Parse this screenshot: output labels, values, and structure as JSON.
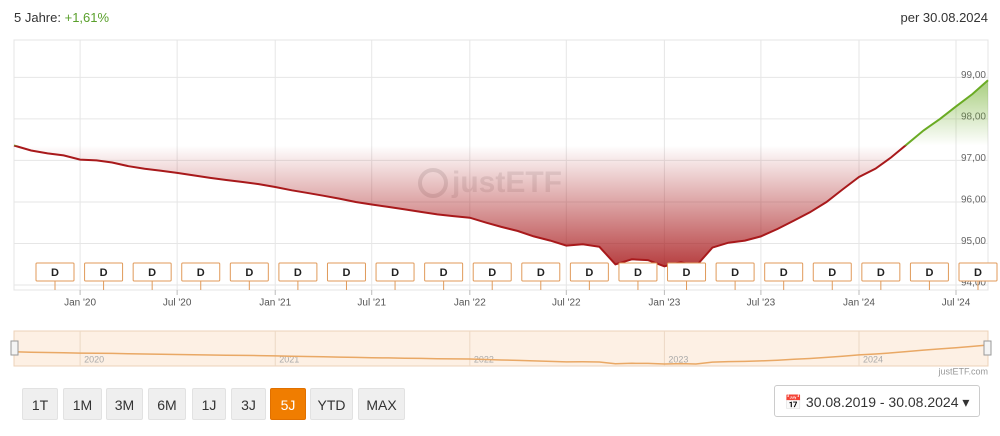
{
  "header": {
    "period_label": "5 Jahre:",
    "performance": "+1,61%",
    "as_of": "per 30.08.2024"
  },
  "chart_data": {
    "type": "area-line",
    "watermark": "justETF",
    "source": "justETF.com",
    "x": [
      "2019-08-30",
      "2019-10-01",
      "2019-11-01",
      "2019-12-01",
      "2020-01-01",
      "2020-02-01",
      "2020-03-01",
      "2020-04-01",
      "2020-05-01",
      "2020-06-01",
      "2020-07-01",
      "2020-08-01",
      "2020-09-01",
      "2020-10-01",
      "2020-11-01",
      "2020-12-01",
      "2021-01-01",
      "2021-02-01",
      "2021-03-01",
      "2021-04-01",
      "2021-05-01",
      "2021-06-01",
      "2021-07-01",
      "2021-08-01",
      "2021-09-01",
      "2021-10-01",
      "2021-11-01",
      "2021-12-01",
      "2022-01-01",
      "2022-02-01",
      "2022-03-01",
      "2022-04-01",
      "2022-05-01",
      "2022-06-01",
      "2022-07-01",
      "2022-08-01",
      "2022-09-01",
      "2022-10-01",
      "2022-11-01",
      "2022-12-01",
      "2023-01-01",
      "2023-02-01",
      "2023-03-01",
      "2023-04-01",
      "2023-05-01",
      "2023-06-01",
      "2023-07-01",
      "2023-08-01",
      "2023-09-01",
      "2023-10-01",
      "2023-11-01",
      "2023-12-01",
      "2024-01-01",
      "2024-02-01",
      "2024-03-01",
      "2024-04-01",
      "2024-05-01",
      "2024-06-01",
      "2024-07-01",
      "2024-08-01",
      "2024-08-30"
    ],
    "values": [
      97.36,
      97.24,
      97.17,
      97.12,
      97.02,
      97.0,
      96.95,
      96.86,
      96.8,
      96.75,
      96.7,
      96.64,
      96.58,
      96.53,
      96.48,
      96.43,
      96.36,
      96.28,
      96.22,
      96.15,
      96.08,
      96.0,
      95.94,
      95.88,
      95.82,
      95.76,
      95.7,
      95.66,
      95.62,
      95.5,
      95.4,
      95.3,
      95.17,
      95.07,
      94.95,
      94.98,
      94.92,
      94.5,
      94.62,
      94.6,
      94.45,
      94.55,
      94.45,
      94.9,
      95.02,
      95.07,
      95.17,
      95.35,
      95.55,
      95.75,
      96.0,
      96.3,
      96.6,
      96.8,
      97.07,
      97.4,
      97.72,
      98.0,
      98.3,
      98.6,
      98.93
    ],
    "color_below": "#a8191b",
    "color_above": "#6aab24",
    "xlim": [
      "2019-08-30",
      "2024-08-30"
    ],
    "xticks": [
      {
        "value": "2020-01-01",
        "label": "Jan '20"
      },
      {
        "value": "2020-07-01",
        "label": "Jul '20"
      },
      {
        "value": "2021-01-01",
        "label": "Jan '21"
      },
      {
        "value": "2021-07-01",
        "label": "Jul '21"
      },
      {
        "value": "2022-01-01",
        "label": "Jan '22"
      },
      {
        "value": "2022-07-01",
        "label": "Jul '22"
      },
      {
        "value": "2023-01-01",
        "label": "Jan '23"
      },
      {
        "value": "2023-07-01",
        "label": "Jul '23"
      },
      {
        "value": "2024-01-01",
        "label": "Jan '24"
      },
      {
        "value": "2024-07-01",
        "label": "Jul '24"
      }
    ],
    "ylim": [
      93.88,
      99.9
    ],
    "yticks": [
      {
        "value": 94,
        "label": "94,00"
      },
      {
        "value": 95,
        "label": "95,00"
      },
      {
        "value": 96,
        "label": "96,00"
      },
      {
        "value": 97,
        "label": "97,00"
      },
      {
        "value": 98,
        "label": "98,00"
      },
      {
        "value": 99,
        "label": "99,00"
      }
    ],
    "grid": true,
    "dividend_markers": [
      "D",
      "D",
      "D",
      "D",
      "D",
      "D",
      "D",
      "D",
      "D",
      "D",
      "D",
      "D",
      "D",
      "D",
      "D",
      "D",
      "D",
      "D",
      "D",
      "D"
    ],
    "navigator": {
      "xticks": [
        {
          "value": "2020-01-01",
          "label": "2020"
        },
        {
          "value": "2021-01-01",
          "label": "2021"
        },
        {
          "value": "2022-01-01",
          "label": "2022"
        },
        {
          "value": "2023-01-01",
          "label": "2023"
        },
        {
          "value": "2024-01-01",
          "label": "2024"
        }
      ]
    }
  },
  "controls": {
    "buttons": [
      "1T",
      "1M",
      "3M",
      "6M",
      "1J",
      "3J",
      "5J",
      "YTD",
      "MAX"
    ],
    "date_range": "30.08.2019 - 30.08.2024"
  }
}
